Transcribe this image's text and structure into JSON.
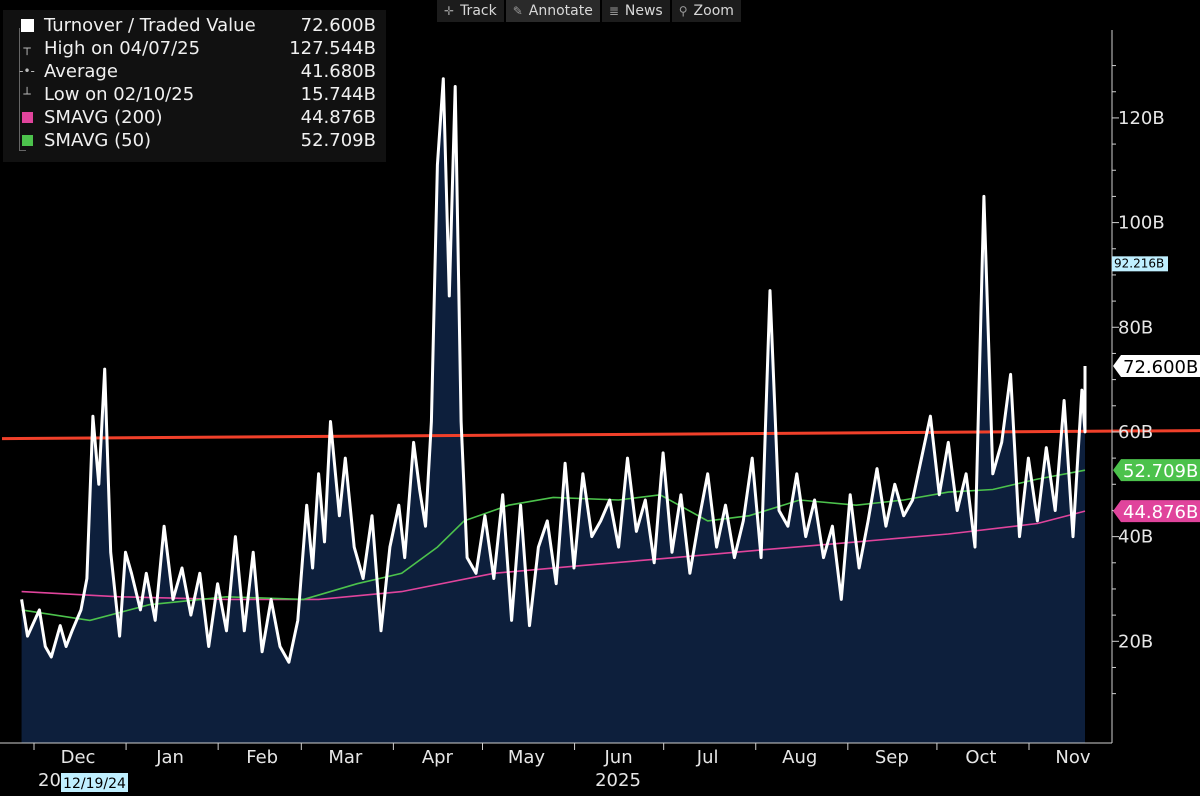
{
  "toolbar": {
    "items": [
      {
        "icon": "crosshair-icon",
        "label": "Track"
      },
      {
        "icon": "pencil-icon",
        "label": "Annotate"
      },
      {
        "icon": "news-icon",
        "label": "News"
      },
      {
        "icon": "magnifier-icon",
        "label": "Zoom"
      }
    ]
  },
  "legend": {
    "rows": [
      {
        "label": "Turnover / Traded Value",
        "value": "72.600B",
        "color": "#ffffff"
      },
      {
        "label": "High on 04/07/25",
        "value": "127.544B"
      },
      {
        "label": "Average",
        "value": "41.680B"
      },
      {
        "label": "Low on 02/10/25",
        "value": "15.744B"
      },
      {
        "label": "SMAVG (200)",
        "value": "44.876B",
        "color": "#e0449c"
      },
      {
        "label": "SMAVG (50)",
        "value": "52.709B",
        "color": "#4cc24c"
      }
    ]
  },
  "chart_data": {
    "type": "area",
    "ylim": [
      3,
      134
    ],
    "y_ticks": [
      20,
      40,
      60,
      80,
      100,
      120
    ],
    "y_tick_labels": [
      "20B",
      "40B",
      "60B",
      "80B",
      "100B",
      "120B"
    ],
    "x_ticks": [
      {
        "label": "Dec",
        "date": "2024-12-01"
      },
      {
        "label": "Jan",
        "date": "2025-01-01"
      },
      {
        "label": "Feb",
        "date": "2025-02-01"
      },
      {
        "label": "Mar",
        "date": "2025-03-01"
      },
      {
        "label": "Apr",
        "date": "2025-04-01"
      },
      {
        "label": "May",
        "date": "2025-05-01"
      },
      {
        "label": "Jun",
        "date": "2025-06-01"
      },
      {
        "label": "Jul",
        "date": "2025-07-01"
      },
      {
        "label": "Aug",
        "date": "2025-08-01"
      },
      {
        "label": "Sep",
        "date": "2025-09-01"
      },
      {
        "label": "Oct",
        "date": "2025-10-01"
      },
      {
        "label": "Nov",
        "date": "2025-11-01"
      }
    ],
    "year_labels": [
      "2024",
      "2025"
    ],
    "cursor_date_label": "12/19/24",
    "horizontal_line": {
      "value": 59.5,
      "color": "#f0402a"
    },
    "price_tags": [
      {
        "label": "92.216B",
        "value": 92.216,
        "bg": "#bfefff",
        "fg": "#000000"
      },
      {
        "label": "72.600B",
        "value": 72.6,
        "bg": "#ffffff",
        "fg": "#000000"
      },
      {
        "label": "52.709B",
        "value": 52.709,
        "bg": "#4cc24c",
        "fg": "#ffffff"
      },
      {
        "label": "44.876B",
        "value": 44.876,
        "bg": "#e0449c",
        "fg": "#ffffff"
      }
    ],
    "series": [
      {
        "name": "Turnover / Traded Value",
        "color": "#ffffff",
        "fill": "#0d1f3c",
        "anchors": [
          [
            "2024-11-12",
            28
          ],
          [
            "2024-11-14",
            21
          ],
          [
            "2024-11-18",
            26
          ],
          [
            "2024-11-20",
            19
          ],
          [
            "2024-11-22",
            17
          ],
          [
            "2024-11-25",
            23
          ],
          [
            "2024-11-27",
            19
          ],
          [
            "2024-11-29",
            22
          ],
          [
            "2024-12-02",
            26
          ],
          [
            "2024-12-04",
            32
          ],
          [
            "2024-12-06",
            63
          ],
          [
            "2024-12-08",
            50
          ],
          [
            "2024-12-10",
            72
          ],
          [
            "2024-12-12",
            37
          ],
          [
            "2024-12-15",
            21
          ],
          [
            "2024-12-17",
            37
          ],
          [
            "2024-12-19",
            33
          ],
          [
            "2024-12-22",
            26
          ],
          [
            "2024-12-24",
            33
          ],
          [
            "2024-12-27",
            24
          ],
          [
            "2024-12-30",
            42
          ],
          [
            "2025-01-02",
            28
          ],
          [
            "2025-01-05",
            34
          ],
          [
            "2025-01-08",
            25
          ],
          [
            "2025-01-11",
            33
          ],
          [
            "2025-01-14",
            19
          ],
          [
            "2025-01-17",
            31
          ],
          [
            "2025-01-20",
            22
          ],
          [
            "2025-01-23",
            40
          ],
          [
            "2025-01-26",
            22
          ],
          [
            "2025-01-29",
            37
          ],
          [
            "2025-02-01",
            18
          ],
          [
            "2025-02-04",
            28
          ],
          [
            "2025-02-07",
            19
          ],
          [
            "2025-02-10",
            16
          ],
          [
            "2025-02-13",
            24
          ],
          [
            "2025-02-16",
            46
          ],
          [
            "2025-02-18",
            34
          ],
          [
            "2025-02-20",
            52
          ],
          [
            "2025-02-22",
            39
          ],
          [
            "2025-02-24",
            62
          ],
          [
            "2025-02-27",
            44
          ],
          [
            "2025-03-01",
            55
          ],
          [
            "2025-03-04",
            38
          ],
          [
            "2025-03-07",
            32
          ],
          [
            "2025-03-10",
            44
          ],
          [
            "2025-03-13",
            22
          ],
          [
            "2025-03-16",
            38
          ],
          [
            "2025-03-19",
            46
          ],
          [
            "2025-03-21",
            36
          ],
          [
            "2025-03-24",
            58
          ],
          [
            "2025-03-26",
            49
          ],
          [
            "2025-03-28",
            42
          ],
          [
            "2025-03-30",
            62
          ],
          [
            "2025-04-01",
            111
          ],
          [
            "2025-04-03",
            127.5
          ],
          [
            "2025-04-05",
            86
          ],
          [
            "2025-04-07",
            126
          ],
          [
            "2025-04-09",
            62
          ],
          [
            "2025-04-11",
            36
          ],
          [
            "2025-04-14",
            33
          ],
          [
            "2025-04-17",
            44
          ],
          [
            "2025-04-20",
            32
          ],
          [
            "2025-04-23",
            48
          ],
          [
            "2025-04-26",
            24
          ],
          [
            "2025-04-29",
            46
          ],
          [
            "2025-05-02",
            23
          ],
          [
            "2025-05-05",
            38
          ],
          [
            "2025-05-08",
            43
          ],
          [
            "2025-05-11",
            31
          ],
          [
            "2025-05-14",
            54
          ],
          [
            "2025-05-17",
            34
          ],
          [
            "2025-05-20",
            52
          ],
          [
            "2025-05-23",
            40
          ],
          [
            "2025-05-26",
            43
          ],
          [
            "2025-05-29",
            47
          ],
          [
            "2025-06-01",
            38
          ],
          [
            "2025-06-04",
            55
          ],
          [
            "2025-06-07",
            41
          ],
          [
            "2025-06-10",
            47
          ],
          [
            "2025-06-13",
            35
          ],
          [
            "2025-06-16",
            56
          ],
          [
            "2025-06-19",
            37
          ],
          [
            "2025-06-22",
            48
          ],
          [
            "2025-06-25",
            33
          ],
          [
            "2025-06-28",
            43
          ],
          [
            "2025-07-01",
            52
          ],
          [
            "2025-07-04",
            38
          ],
          [
            "2025-07-07",
            46
          ],
          [
            "2025-07-10",
            36
          ],
          [
            "2025-07-13",
            43
          ],
          [
            "2025-07-16",
            55
          ],
          [
            "2025-07-19",
            36
          ],
          [
            "2025-07-22",
            87
          ],
          [
            "2025-07-25",
            45
          ],
          [
            "2025-07-28",
            42
          ],
          [
            "2025-07-31",
            52
          ],
          [
            "2025-08-03",
            40
          ],
          [
            "2025-08-06",
            47
          ],
          [
            "2025-08-09",
            36
          ],
          [
            "2025-08-12",
            42
          ],
          [
            "2025-08-15",
            28
          ],
          [
            "2025-08-18",
            48
          ],
          [
            "2025-08-21",
            34
          ],
          [
            "2025-08-24",
            43
          ],
          [
            "2025-08-27",
            53
          ],
          [
            "2025-08-30",
            42
          ],
          [
            "2025-09-02",
            50
          ],
          [
            "2025-09-05",
            44
          ],
          [
            "2025-09-08",
            47
          ],
          [
            "2025-09-11",
            55
          ],
          [
            "2025-09-14",
            63
          ],
          [
            "2025-09-17",
            48
          ],
          [
            "2025-09-20",
            58
          ],
          [
            "2025-09-23",
            45
          ],
          [
            "2025-09-26",
            52
          ],
          [
            "2025-09-29",
            38
          ],
          [
            "2025-10-02",
            105
          ],
          [
            "2025-10-05",
            52
          ],
          [
            "2025-10-08",
            58
          ],
          [
            "2025-10-11",
            71
          ],
          [
            "2025-10-14",
            40
          ],
          [
            "2025-10-17",
            55
          ],
          [
            "2025-10-20",
            43
          ],
          [
            "2025-10-23",
            57
          ],
          [
            "2025-10-26",
            45
          ],
          [
            "2025-10-29",
            66
          ],
          [
            "2025-11-01",
            40
          ],
          [
            "2025-11-04",
            68
          ],
          [
            "2025-11-07",
            60
          ],
          [
            "2025-11-10",
            72.6
          ]
        ]
      },
      {
        "name": "SMAVG (50)",
        "color": "#4cc24c",
        "anchors": [
          [
            "2024-11-12",
            26
          ],
          [
            "2024-12-05",
            24
          ],
          [
            "2024-12-25",
            27
          ],
          [
            "2025-01-20",
            28.5
          ],
          [
            "2025-02-15",
            28
          ],
          [
            "2025-03-05",
            31
          ],
          [
            "2025-03-20",
            33
          ],
          [
            "2025-04-01",
            38
          ],
          [
            "2025-04-10",
            43
          ],
          [
            "2025-04-25",
            46
          ],
          [
            "2025-05-10",
            47.5
          ],
          [
            "2025-06-01",
            47
          ],
          [
            "2025-06-15",
            48
          ],
          [
            "2025-07-01",
            43
          ],
          [
            "2025-07-15",
            44
          ],
          [
            "2025-08-01",
            47
          ],
          [
            "2025-08-20",
            46
          ],
          [
            "2025-09-05",
            47
          ],
          [
            "2025-09-20",
            48.5
          ],
          [
            "2025-10-05",
            49
          ],
          [
            "2025-10-20",
            51
          ],
          [
            "2025-11-10",
            52.7
          ]
        ]
      },
      {
        "name": "SMAVG (200)",
        "color": "#e0449c",
        "anchors": [
          [
            "2024-11-12",
            29.5
          ],
          [
            "2024-12-15",
            28.5
          ],
          [
            "2025-01-20",
            28
          ],
          [
            "2025-02-20",
            28
          ],
          [
            "2025-03-20",
            29.5
          ],
          [
            "2025-04-20",
            33
          ],
          [
            "2025-05-20",
            34.5
          ],
          [
            "2025-06-20",
            36
          ],
          [
            "2025-07-20",
            37.5
          ],
          [
            "2025-08-20",
            39
          ],
          [
            "2025-09-20",
            40.5
          ],
          [
            "2025-10-20",
            42.5
          ],
          [
            "2025-11-10",
            44.876
          ]
        ]
      }
    ]
  }
}
